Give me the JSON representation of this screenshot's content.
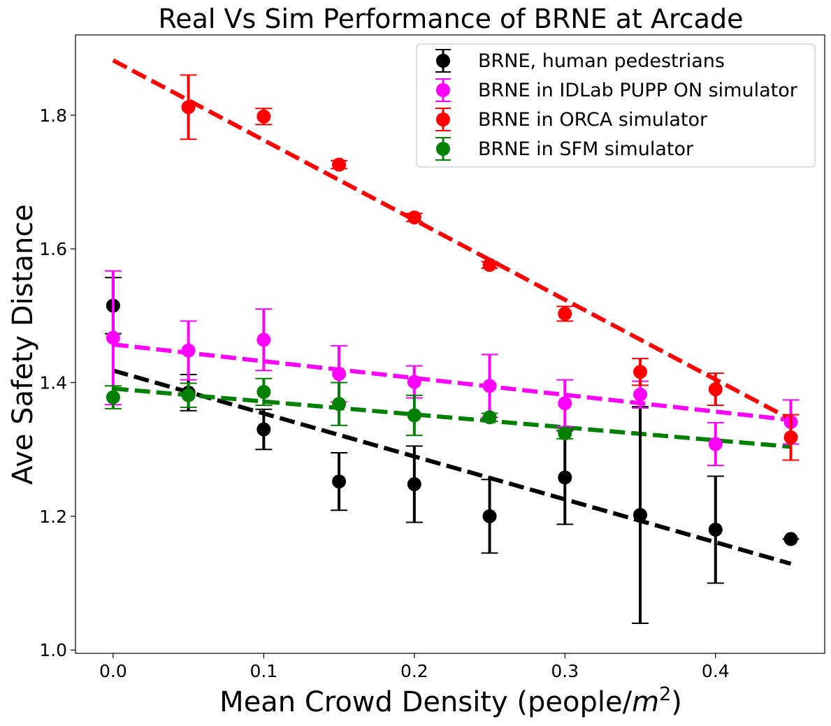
{
  "chart_data": {
    "type": "scatter",
    "title": "Real Vs Sim Performance of BRNE at Arcade",
    "xlabel_main": "Mean Crowd Density (people/",
    "xlabel_var": "m",
    "xlabel_sup": "2",
    "xlabel_close": ")",
    "ylabel": "Ave Safety Distance",
    "xlim": [
      -0.025,
      0.4725
    ],
    "ylim": [
      0.995,
      1.92
    ],
    "x_ticks": [
      0.0,
      0.1,
      0.2,
      0.3,
      0.4
    ],
    "x_tick_labels": [
      "0.0",
      "0.1",
      "0.2",
      "0.3",
      "0.4"
    ],
    "y_ticks": [
      1.0,
      1.2,
      1.4,
      1.6,
      1.8
    ],
    "y_tick_labels": [
      "1.0",
      "1.2",
      "1.4",
      "1.6",
      "1.8"
    ],
    "grid": false,
    "legend_position": "top-right",
    "x": [
      0.0,
      0.05,
      0.1,
      0.15,
      0.2,
      0.25,
      0.3,
      0.35,
      0.4,
      0.45
    ],
    "series": [
      {
        "name": "BRNE, human pedestrians",
        "color": "#000000",
        "values": [
          1.515,
          1.385,
          1.33,
          1.252,
          1.248,
          1.2,
          1.258,
          1.202,
          1.18,
          1.166
        ],
        "errors": [
          0.042,
          0.027,
          0.03,
          0.043,
          0.057,
          0.055,
          0.07,
          0.162,
          0.08,
          0.0
        ],
        "fit": [
          1.418,
          1.129
        ]
      },
      {
        "name": "BRNE in IDLab PUPP ON simulator",
        "color": "#ff00ff",
        "values": [
          1.467,
          1.448,
          1.464,
          1.413,
          1.401,
          1.395,
          1.369,
          1.382,
          1.308,
          1.341
        ],
        "errors": [
          0.1,
          0.044,
          0.046,
          0.042,
          0.024,
          0.047,
          0.035,
          0.02,
          0.032,
          0.033
        ],
        "fit": [
          1.457,
          1.344
        ]
      },
      {
        "name": "BRNE in ORCA simulator",
        "color": "#ff0000",
        "values": [
          null,
          1.812,
          1.798,
          1.726,
          1.647,
          1.576,
          1.503,
          1.416,
          1.39,
          1.318
        ],
        "errors": [
          null,
          0.048,
          0.012,
          0.006,
          0.006,
          0.005,
          0.011,
          0.02,
          0.024,
          0.034
        ],
        "fit": [
          1.882,
          1.345
        ]
      },
      {
        "name": "BRNE in SFM simulator",
        "color": "#008000",
        "values": [
          1.378,
          1.381,
          1.386,
          1.368,
          1.351,
          1.348,
          1.324,
          null,
          null,
          null
        ],
        "errors": [
          0.017,
          0.018,
          0.02,
          0.032,
          0.03,
          0.006,
          0.008,
          null,
          null,
          null
        ],
        "fit": [
          1.391,
          1.304
        ]
      }
    ]
  }
}
